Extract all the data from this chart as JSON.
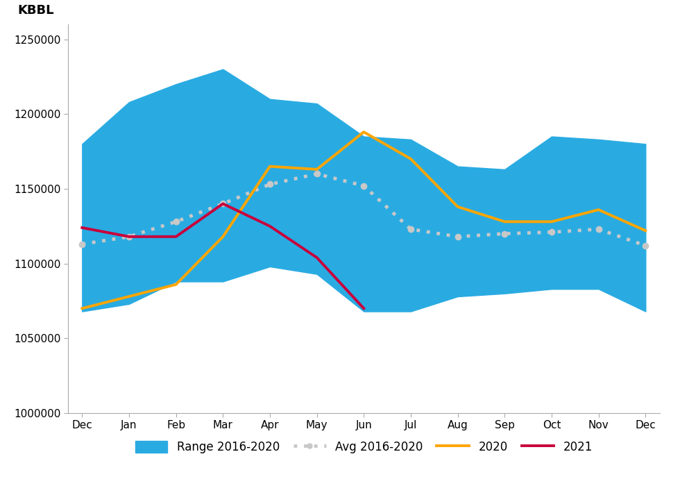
{
  "months": [
    "Dec",
    "Jan",
    "Feb",
    "Mar",
    "Apr",
    "May",
    "Jun",
    "Jul",
    "Aug",
    "Sep",
    "Oct",
    "Nov",
    "Dec"
  ],
  "range_upper": [
    1180000,
    1208000,
    1220000,
    1230000,
    1210000,
    1207000,
    1185000,
    1183000,
    1165000,
    1163000,
    1185000,
    1183000,
    1180000
  ],
  "range_lower": [
    1068000,
    1073000,
    1088000,
    1088000,
    1098000,
    1093000,
    1068000,
    1068000,
    1078000,
    1080000,
    1083000,
    1083000,
    1068000
  ],
  "avg": [
    1113000,
    1118000,
    1128000,
    1140000,
    1153000,
    1160000,
    1152000,
    1123000,
    1118000,
    1120000,
    1121000,
    1123000,
    1112000
  ],
  "line_2020": [
    1070000,
    1078000,
    1086000,
    1118000,
    1165000,
    1163000,
    1188000,
    1170000,
    1138000,
    1128000,
    1128000,
    1136000,
    1122000
  ],
  "line_2021": [
    1124000,
    1118000,
    1118000,
    1140000,
    1125000,
    1104000,
    1070000,
    null,
    null,
    null,
    null,
    null,
    null
  ],
  "ylim": [
    1000000,
    1260000
  ],
  "yticks": [
    1000000,
    1050000,
    1100000,
    1150000,
    1200000,
    1250000
  ],
  "range_color": "#29ABE2",
  "avg_color": "#C8C8C8",
  "line_2020_color": "#FFA500",
  "line_2021_color": "#C8003C",
  "background_color": "#FFFFFF",
  "ylabel": "KBBL",
  "ylabel_fontsize": 13,
  "tick_fontsize": 11,
  "legend_fontsize": 12
}
